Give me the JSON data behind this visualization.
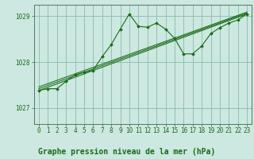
{
  "xlabel": "Graphe pression niveau de la mer (hPa)",
  "bg_color": "#cce8e0",
  "plot_bg_color": "#cce8e0",
  "grid_color": "#88bbaa",
  "line_color": "#1a6b1a",
  "marker_color": "#1a6b1a",
  "bottom_bar_color": "#2a6b3a",
  "ylim": [
    1026.65,
    1029.25
  ],
  "xlim": [
    -0.5,
    23.5
  ],
  "yticks": [
    1027,
    1028,
    1029
  ],
  "xticks": [
    0,
    1,
    2,
    3,
    4,
    5,
    6,
    7,
    8,
    9,
    10,
    11,
    12,
    13,
    14,
    15,
    16,
    17,
    18,
    19,
    20,
    21,
    22,
    23
  ],
  "series_main": [
    [
      0,
      1027.38
    ],
    [
      1,
      1027.42
    ],
    [
      2,
      1027.42
    ],
    [
      3,
      1027.58
    ],
    [
      4,
      1027.72
    ],
    [
      5,
      1027.78
    ],
    [
      6,
      1027.82
    ],
    [
      7,
      1028.12
    ],
    [
      8,
      1028.38
    ],
    [
      9,
      1028.72
    ],
    [
      10,
      1029.05
    ],
    [
      11,
      1028.78
    ],
    [
      12,
      1028.76
    ],
    [
      13,
      1028.85
    ],
    [
      14,
      1028.72
    ],
    [
      15,
      1028.52
    ],
    [
      16,
      1028.18
    ],
    [
      17,
      1028.18
    ],
    [
      18,
      1028.35
    ],
    [
      19,
      1028.62
    ],
    [
      20,
      1028.75
    ],
    [
      21,
      1028.85
    ],
    [
      22,
      1028.92
    ],
    [
      23,
      1029.05
    ]
  ],
  "series_line2": [
    [
      0,
      1027.38
    ],
    [
      23,
      1029.05
    ]
  ],
  "series_line3": [
    [
      0,
      1027.42
    ],
    [
      23,
      1029.07
    ]
  ],
  "series_line4": [
    [
      0,
      1027.46
    ],
    [
      23,
      1029.09
    ]
  ],
  "tick_fontsize": 5.5,
  "label_fontsize": 7.0
}
